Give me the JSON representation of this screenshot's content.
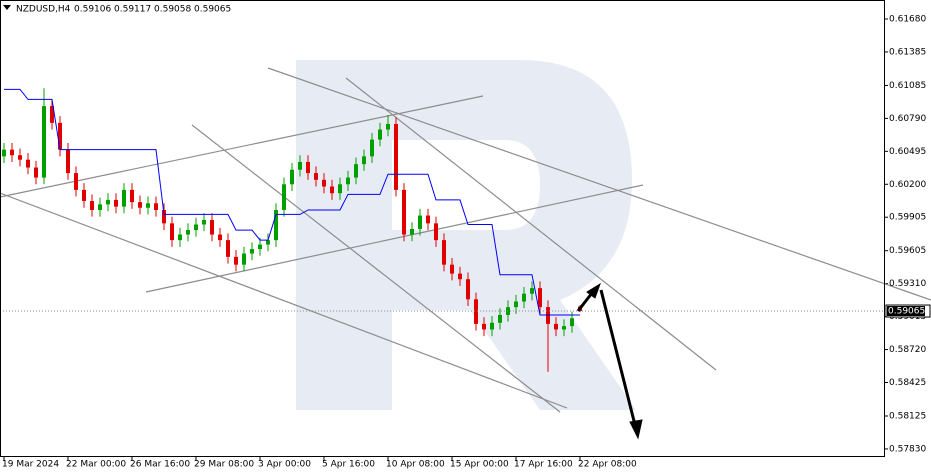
{
  "chart_data": {
    "type": "candlestick",
    "title": "NZDUSD,H4",
    "quote": [
      "0.59106",
      "0.59117",
      "0.59058",
      "0.59065"
    ],
    "categories": [
      "19 Mar 2024",
      null,
      null,
      null,
      null,
      null,
      null,
      null,
      "22 Mar 00:00",
      null,
      null,
      null,
      null,
      null,
      null,
      null,
      "26 Mar 16:00",
      null,
      null,
      null,
      null,
      null,
      null,
      null,
      "29 Mar 08:00",
      null,
      null,
      null,
      null,
      null,
      null,
      null,
      "3 Apr 00:00",
      null,
      null,
      null,
      null,
      null,
      null,
      null,
      "5 Apr 16:00",
      null,
      null,
      null,
      null,
      null,
      null,
      null,
      "10 Apr 08:00",
      null,
      null,
      null,
      null,
      null,
      null,
      null,
      "15 Apr 00:00",
      null,
      null,
      null,
      null,
      null,
      null,
      null,
      "17 Apr 16:00",
      null,
      null,
      null,
      null,
      null,
      null,
      null,
      "22 Apr 08:00"
    ],
    "open": [
      0.6045,
      0.6051,
      0.6046,
      0.6042,
      0.6035,
      0.6026,
      0.609,
      0.6075,
      0.6051,
      0.603,
      0.6015,
      0.6005,
      0.5997,
      0.6002,
      0.6006,
      0.6,
      0.6015,
      0.6004,
      0.5999,
      0.6003,
      0.5997,
      0.5985,
      0.597,
      0.5975,
      0.5979,
      0.5984,
      0.5988,
      0.5975,
      0.597,
      0.5955,
      0.5948,
      0.5958,
      0.5962,
      0.5966,
      0.597,
      0.5997,
      0.602,
      0.6033,
      0.604,
      0.603,
      0.6024,
      0.6018,
      0.6012,
      0.602,
      0.6026,
      0.6038,
      0.6045,
      0.606,
      0.6069,
      0.6074,
      0.6015,
      0.5975,
      0.598,
      0.5992,
      0.5985,
      0.597,
      0.5948,
      0.594,
      0.5935,
      0.5917,
      0.5895,
      0.589,
      0.5896,
      0.5903,
      0.591,
      0.5915,
      0.5922,
      0.5927,
      0.591,
      0.5895,
      0.589,
      0.5893,
      0.59106
    ],
    "high": [
      0.6057,
      0.6057,
      0.6052,
      0.6048,
      0.6041,
      0.6106,
      0.6096,
      0.6081,
      0.6057,
      0.6036,
      0.6021,
      0.6011,
      0.6008,
      0.6012,
      0.6012,
      0.6021,
      0.6021,
      0.601,
      0.6009,
      0.6009,
      0.6003,
      0.5991,
      0.5981,
      0.5985,
      0.599,
      0.5994,
      0.5994,
      0.5981,
      0.5976,
      0.5961,
      0.5964,
      0.5968,
      0.5972,
      0.5976,
      0.6003,
      0.6026,
      0.6039,
      0.6046,
      0.6046,
      0.6036,
      0.603,
      0.6024,
      0.6026,
      0.6032,
      0.6044,
      0.6051,
      0.6066,
      0.6075,
      0.6082,
      0.608,
      0.6021,
      0.5986,
      0.5998,
      0.5998,
      0.5991,
      0.5976,
      0.5954,
      0.5946,
      0.5941,
      0.5923,
      0.5901,
      0.5902,
      0.5909,
      0.5916,
      0.5921,
      0.5928,
      0.5933,
      0.5933,
      0.5916,
      0.5901,
      0.5899,
      0.5906,
      0.59117
    ],
    "low": [
      0.6039,
      0.604,
      0.6036,
      0.6029,
      0.602,
      0.602,
      0.6069,
      0.6045,
      0.6024,
      0.6009,
      0.5999,
      0.5991,
      0.5991,
      0.5996,
      0.5994,
      0.5994,
      0.5998,
      0.5993,
      0.5993,
      0.5991,
      0.5979,
      0.5964,
      0.5964,
      0.5969,
      0.5973,
      0.5978,
      0.5969,
      0.5964,
      0.5949,
      0.5942,
      0.5942,
      0.5952,
      0.5956,
      0.596,
      0.5964,
      0.5991,
      0.6014,
      0.6027,
      0.6024,
      0.6018,
      0.6012,
      0.6006,
      0.6006,
      0.6014,
      0.602,
      0.6032,
      0.6039,
      0.6054,
      0.6063,
      0.6009,
      0.5969,
      0.5969,
      0.5974,
      0.5979,
      0.5964,
      0.5942,
      0.5934,
      0.5929,
      0.5911,
      0.5889,
      0.5884,
      0.5884,
      0.589,
      0.5897,
      0.5904,
      0.5909,
      0.5916,
      0.5904,
      0.5852,
      0.5884,
      0.5884,
      0.5887,
      0.59058
    ],
    "close": [
      0.6051,
      0.6046,
      0.6042,
      0.6035,
      0.6026,
      0.609,
      0.6075,
      0.6051,
      0.603,
      0.6015,
      0.6005,
      0.5997,
      0.6002,
      0.6006,
      0.6,
      0.6015,
      0.6004,
      0.5999,
      0.6003,
      0.5997,
      0.5985,
      0.597,
      0.5975,
      0.5979,
      0.5984,
      0.5988,
      0.5975,
      0.597,
      0.5955,
      0.5948,
      0.5958,
      0.5962,
      0.5966,
      0.597,
      0.5997,
      0.602,
      0.6033,
      0.604,
      0.603,
      0.6024,
      0.6018,
      0.6012,
      0.602,
      0.6026,
      0.6038,
      0.6045,
      0.606,
      0.6069,
      0.6074,
      0.6015,
      0.5975,
      0.598,
      0.5992,
      0.5985,
      0.597,
      0.5948,
      0.594,
      0.5935,
      0.5917,
      0.5895,
      0.589,
      0.5896,
      0.5903,
      0.591,
      0.5915,
      0.5922,
      0.5927,
      0.591,
      0.5895,
      0.589,
      0.5893,
      0.59,
      0.59065
    ],
    "up_color": "#00a000",
    "down_color": "#e00000",
    "line": {
      "color": "#0000ff",
      "values": [
        0.6105,
        0.6105,
        0.6105,
        0.6096,
        0.6096,
        0.6096,
        0.6096,
        0.6051,
        0.6051,
        0.6051,
        0.6051,
        0.6051,
        0.6051,
        0.6051,
        0.6051,
        0.6051,
        0.6051,
        0.6051,
        0.6051,
        0.6051,
        0.5993,
        0.5993,
        0.5993,
        0.5993,
        0.5993,
        0.5993,
        0.5993,
        0.5993,
        0.5993,
        0.5979,
        0.5979,
        0.5979,
        0.597,
        0.597,
        0.5993,
        0.5993,
        0.5993,
        0.5993,
        0.5997,
        0.5997,
        0.5997,
        0.5997,
        0.5997,
        0.6011,
        0.6011,
        0.6011,
        0.6011,
        0.6011,
        0.6029,
        0.6029,
        0.6029,
        0.6029,
        0.6029,
        0.6029,
        0.6006,
        0.6006,
        0.6006,
        0.6006,
        0.5984,
        0.5984,
        0.5984,
        0.5984,
        0.5939,
        0.5939,
        0.5939,
        0.5939,
        0.5939,
        0.5903,
        0.5903,
        0.5903,
        0.5903,
        0.5903,
        0.5903
      ]
    },
    "last_price": {
      "value": 0.59065,
      "label": "0.59065"
    },
    "ylim": [
      0.57758,
      0.6185
    ],
    "yticks": [
      {
        "value": 0.6168,
        "label": "0.61680"
      },
      {
        "value": 0.61385,
        "label": "0.61385"
      },
      {
        "value": 0.61085,
        "label": "0.61085"
      },
      {
        "value": 0.6079,
        "label": "0.60790"
      },
      {
        "value": 0.60495,
        "label": "0.60495"
      },
      {
        "value": 0.602,
        "label": "0.60200"
      },
      {
        "value": 0.59905,
        "label": "0.59905"
      },
      {
        "value": 0.59605,
        "label": "0.59605"
      },
      {
        "value": 0.5931,
        "label": "0.59310"
      },
      {
        "value": 0.59015,
        "label": "0.59015"
      },
      {
        "value": 0.5872,
        "label": "0.58720"
      },
      {
        "value": 0.58425,
        "label": "0.58425"
      },
      {
        "value": 0.58125,
        "label": "0.58125"
      },
      {
        "value": 0.5783,
        "label": "0.57830"
      }
    ]
  }
}
